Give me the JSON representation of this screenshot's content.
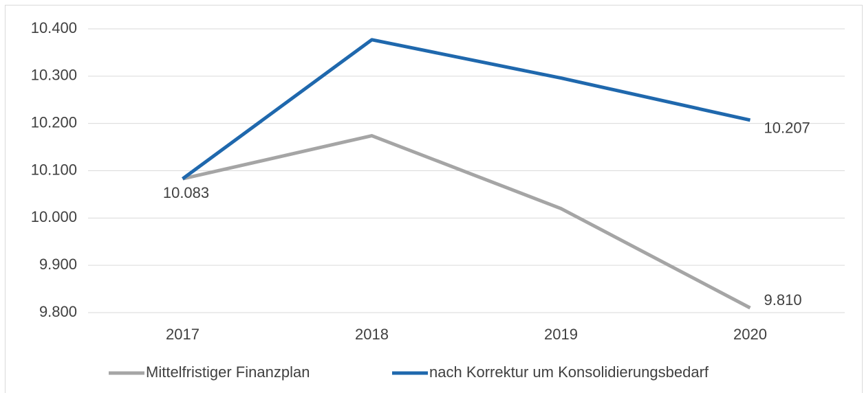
{
  "chart_data": {
    "type": "line",
    "categories": [
      "2017",
      "2018",
      "2019",
      "2020"
    ],
    "series": [
      {
        "name": "Mittelfristiger Finanzplan",
        "color": "#a5a5a5",
        "values": [
          10083,
          10174,
          10020,
          9810
        ],
        "value_labels": [
          "10.083",
          null,
          null,
          "9.810"
        ]
      },
      {
        "name": "nach Korrektur um Konsolidierungsbedarf",
        "color": "#1f68ad",
        "values": [
          10083,
          10377,
          10296,
          10207
        ],
        "value_labels": [
          null,
          null,
          null,
          "10.207"
        ]
      }
    ],
    "ylim": [
      9800,
      10400
    ],
    "yticks": [
      {
        "value": 9800,
        "label": "9.800"
      },
      {
        "value": 9900,
        "label": "9.900"
      },
      {
        "value": 10000,
        "label": "10.000"
      },
      {
        "value": 10100,
        "label": "10.100"
      },
      {
        "value": 10200,
        "label": "10.200"
      },
      {
        "value": 10300,
        "label": "10.300"
      },
      {
        "value": 10400,
        "label": "10.400"
      }
    ],
    "grid": true,
    "legend": "bottom"
  }
}
